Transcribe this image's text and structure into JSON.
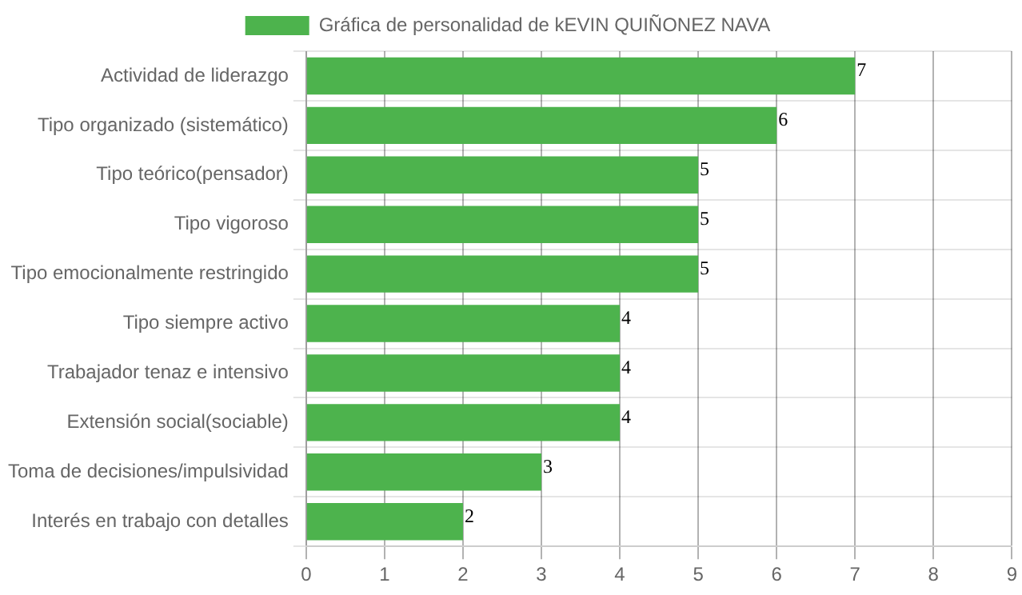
{
  "chart_data": {
    "type": "bar",
    "orientation": "horizontal",
    "categories": [
      "Actividad de liderazgo",
      "Tipo organizado (sistemático)",
      "Tipo teórico(pensador)",
      "Tipo vigoroso",
      "Tipo emocionalmente restringido",
      "Tipo siempre activo",
      "Trabajador tenaz e intensivo",
      "Extensión social(sociable)",
      "Toma de decisiones/impulsividad",
      "Interés en trabajo con detalles"
    ],
    "series": [
      {
        "name": "Gráfica de personalidad de kEVIN QUIÑONEZ NAVA",
        "color": "#4db34d",
        "values": [
          7,
          6,
          5,
          5,
          5,
          4,
          4,
          4,
          3,
          2
        ]
      }
    ],
    "xlim": [
      0,
      9
    ],
    "xticks": [
      0,
      1,
      2,
      3,
      4,
      5,
      6,
      7,
      8,
      9
    ],
    "grid": true,
    "legend": "top",
    "data_labels": true
  }
}
